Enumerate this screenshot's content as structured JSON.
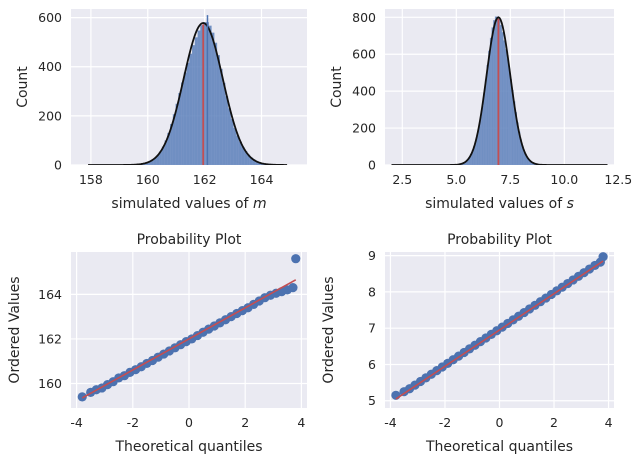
{
  "chart_data": [
    {
      "type": "histogram",
      "title": "",
      "xlabel": "simulated values of m",
      "ylabel": "Count",
      "xlim": [
        157.3,
        165.6
      ],
      "ylim": [
        0,
        635
      ],
      "xticks": [
        158,
        160,
        162,
        164
      ],
      "yticks": [
        0,
        200,
        400,
        600
      ],
      "hist_color": "#5b7fba",
      "kde_color": "#111111",
      "mean_line": {
        "x": 161.95,
        "color": "#c44e52"
      },
      "center_marker": {
        "x": 162.1,
        "y_top": 610,
        "color": "#4c72b0"
      },
      "density": {
        "mean": 161.95,
        "sd": 0.69,
        "peak": 578,
        "x_start": 157.9,
        "x_end": 164.9
      }
    },
    {
      "type": "histogram",
      "title": "",
      "xlabel": "simulated values of s",
      "ylabel": "Count",
      "xlim": [
        1.7,
        12.3
      ],
      "ylim": [
        0,
        845
      ],
      "xticks": [
        2.5,
        5.0,
        7.5,
        10.0,
        12.5
      ],
      "yticks": [
        0,
        200,
        400,
        600,
        800
      ],
      "hist_color": "#5b7fba",
      "kde_color": "#111111",
      "mean_line": {
        "x": 6.95,
        "color": "#c44e52"
      },
      "density": {
        "mean": 6.95,
        "sd": 0.55,
        "peak": 800,
        "x_start": 2.0,
        "x_end": 12.0
      }
    },
    {
      "type": "scatter",
      "title": "Probability Plot",
      "xlabel": "Theoretical quantiles",
      "ylabel": "Ordered Values",
      "xlim": [
        -4.2,
        4.2
      ],
      "ylim": [
        158.9,
        165.9
      ],
      "xticks": [
        -4,
        -2,
        0,
        2,
        4
      ],
      "yticks": [
        160,
        162,
        164
      ],
      "point_color": "#4c72b0",
      "fit_line": {
        "x": [
          -3.8,
          3.8
        ],
        "y": [
          159.35,
          164.65
        ],
        "color": "#c44e52"
      },
      "points": {
        "x": [
          -3.8,
          -3.5,
          -3.3,
          -3.1,
          -2.9,
          -2.7,
          -2.5,
          -2.3,
          -2.1,
          -1.9,
          -1.7,
          -1.5,
          -1.3,
          -1.1,
          -0.9,
          -0.7,
          -0.5,
          -0.3,
          -0.1,
          0.1,
          0.3,
          0.5,
          0.7,
          0.9,
          1.1,
          1.3,
          1.5,
          1.7,
          1.9,
          2.1,
          2.3,
          2.5,
          2.7,
          2.9,
          3.1,
          3.3,
          3.5,
          3.7,
          3.8
        ],
        "y": [
          159.4,
          159.6,
          159.72,
          159.8,
          159.95,
          160.08,
          160.25,
          160.35,
          160.5,
          160.62,
          160.75,
          160.9,
          161.03,
          161.18,
          161.32,
          161.46,
          161.6,
          161.74,
          161.88,
          162.0,
          162.15,
          162.3,
          162.44,
          162.58,
          162.72,
          162.86,
          163.0,
          163.14,
          163.27,
          163.4,
          163.55,
          163.7,
          163.85,
          163.96,
          164.05,
          164.12,
          164.2,
          164.3,
          165.6
        ]
      }
    },
    {
      "type": "scatter",
      "title": "Probability Plot",
      "xlabel": "Theoretical quantiles",
      "ylabel": "Ordered Values",
      "xlim": [
        -4.2,
        4.2
      ],
      "ylim": [
        4.8,
        9.1
      ],
      "xticks": [
        -4,
        -2,
        0,
        2,
        4
      ],
      "yticks": [
        5,
        6,
        7,
        8,
        9
      ],
      "point_color": "#4c72b0",
      "fit_line": {
        "x": [
          -3.8,
          3.8
        ],
        "y": [
          5.05,
          8.85
        ],
        "color": "#c44e52"
      },
      "points": {
        "x": [
          -3.8,
          -3.5,
          -3.3,
          -3.1,
          -2.9,
          -2.7,
          -2.5,
          -2.3,
          -2.1,
          -1.9,
          -1.7,
          -1.5,
          -1.3,
          -1.1,
          -0.9,
          -0.7,
          -0.5,
          -0.3,
          -0.1,
          0.1,
          0.3,
          0.5,
          0.7,
          0.9,
          1.1,
          1.3,
          1.5,
          1.7,
          1.9,
          2.1,
          2.3,
          2.5,
          2.7,
          2.9,
          3.1,
          3.3,
          3.5,
          3.7,
          3.8
        ],
        "y": [
          5.15,
          5.25,
          5.33,
          5.43,
          5.53,
          5.63,
          5.73,
          5.83,
          5.93,
          6.03,
          6.13,
          6.23,
          6.33,
          6.43,
          6.53,
          6.63,
          6.73,
          6.83,
          6.93,
          7.03,
          7.13,
          7.23,
          7.33,
          7.43,
          7.53,
          7.63,
          7.73,
          7.83,
          7.93,
          8.03,
          8.13,
          8.23,
          8.33,
          8.43,
          8.53,
          8.63,
          8.73,
          8.82,
          8.97
        ]
      }
    }
  ]
}
